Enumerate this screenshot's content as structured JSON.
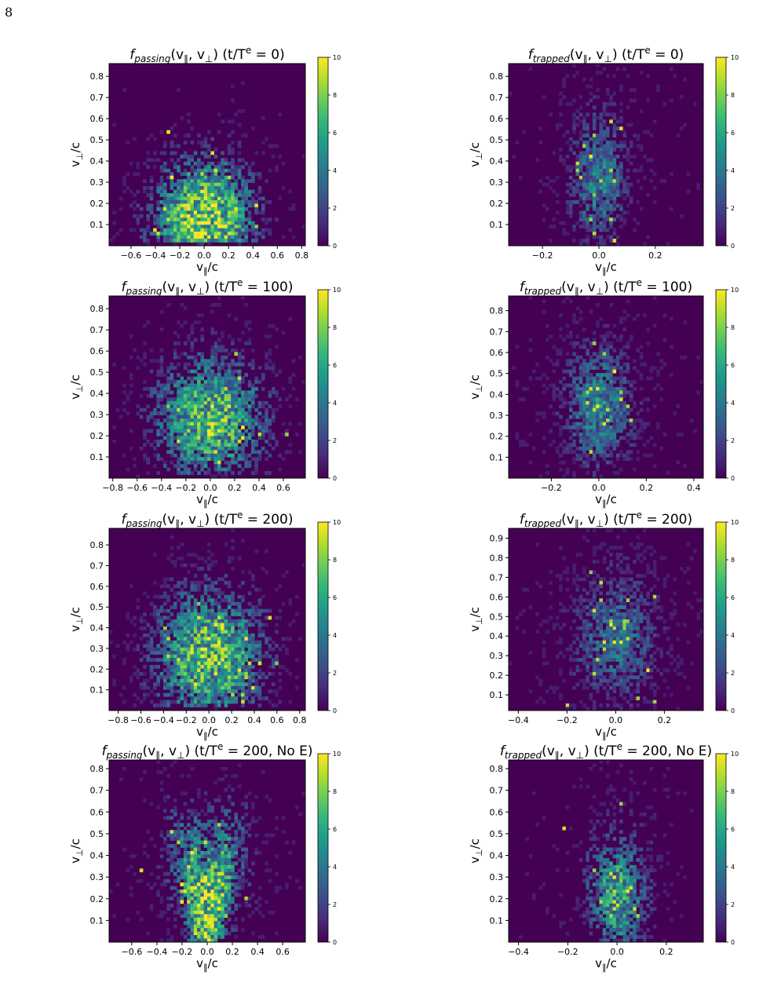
{
  "page_number": "8",
  "colorbar": {
    "min": 0,
    "max": 10,
    "ticks": [
      "0",
      "2",
      "4",
      "6",
      "8",
      "10"
    ]
  },
  "colors": {
    "viridis_low": "#440154",
    "viridis_mid": "#21918c",
    "viridis_high": "#fde725"
  },
  "chart_data": [
    {
      "id": "passing-t0",
      "type": "heatmap",
      "title": "f_passing(v_∥, v_⊥) (t/T^e = 0)",
      "title_parts": {
        "sub": "passing",
        "time": "0"
      },
      "xlabel": "v_∥/c",
      "ylabel": "v_⊥/c",
      "xlim": [
        -0.78,
        0.83
      ],
      "ylim": [
        0.0,
        0.86
      ],
      "xticks": [
        -0.6,
        -0.4,
        -0.2,
        0.0,
        0.2,
        0.4,
        0.6,
        0.8
      ],
      "xticklabels": [
        "−0.6",
        "−0.4",
        "−0.2",
        "0.0",
        "0.2",
        "0.4",
        "0.6",
        "0.8"
      ],
      "yticks": [
        0.1,
        0.2,
        0.3,
        0.4,
        0.5,
        0.6,
        0.7,
        0.8
      ],
      "yticklabels": [
        "0.1",
        "0.2",
        "0.3",
        "0.4",
        "0.5",
        "0.6",
        "0.7",
        "0.8"
      ],
      "distribution": {
        "kind": "passing",
        "seed": 11,
        "density": 1.15,
        "sx": 0.28,
        "sy": 0.2,
        "cy": 0.12,
        "peak": 9.2
      }
    },
    {
      "id": "trapped-t0",
      "type": "heatmap",
      "title": "f_trapped(v_∥, v_⊥) (t/T^e = 0)",
      "title_parts": {
        "sub": "trapped",
        "time": "0"
      },
      "xlabel": "v_∥/c",
      "ylabel": "v_⊥/c",
      "xlim": [
        -0.32,
        0.37
      ],
      "ylim": [
        0.0,
        0.86
      ],
      "xticks": [
        -0.2,
        0.0,
        0.2
      ],
      "xticklabels": [
        "−0.2",
        "0.0",
        "0.2"
      ],
      "yticks": [
        0.1,
        0.2,
        0.3,
        0.4,
        0.5,
        0.6,
        0.7,
        0.8
      ],
      "yticklabels": [
        "0.1",
        "0.2",
        "0.3",
        "0.4",
        "0.5",
        "0.6",
        "0.7",
        "0.8"
      ],
      "distribution": {
        "kind": "trapped",
        "seed": 23,
        "density": 0.7,
        "sx": 0.07,
        "sy": 0.22,
        "cy": 0.3,
        "peak": 6.4
      }
    },
    {
      "id": "passing-t100",
      "type": "heatmap",
      "title": "f_passing(v_∥, v_⊥) (t/T^e = 100)",
      "title_parts": {
        "sub": "passing",
        "time": "100"
      },
      "xlabel": "v_∥/c",
      "ylabel": "v_⊥/c",
      "xlim": [
        -0.83,
        0.78
      ],
      "ylim": [
        0.0,
        0.86
      ],
      "xticks": [
        -0.8,
        -0.6,
        -0.4,
        -0.2,
        0.0,
        0.2,
        0.4,
        0.6
      ],
      "xticklabels": [
        "−0.8",
        "−0.6",
        "−0.4",
        "−0.2",
        "0.0",
        "0.2",
        "0.4",
        "0.6"
      ],
      "yticks": [
        0.1,
        0.2,
        0.3,
        0.4,
        0.5,
        0.6,
        0.7,
        0.8
      ],
      "yticklabels": [
        "0.1",
        "0.2",
        "0.3",
        "0.4",
        "0.5",
        "0.6",
        "0.7",
        "0.8"
      ],
      "distribution": {
        "kind": "passing",
        "seed": 37,
        "density": 1.0,
        "sx": 0.3,
        "sy": 0.2,
        "cy": 0.28,
        "peak": 8.8
      }
    },
    {
      "id": "trapped-t100",
      "type": "heatmap",
      "title": "f_trapped(v_∥, v_⊥) (t/T^e = 100)",
      "title_parts": {
        "sub": "trapped",
        "time": "100"
      },
      "xlabel": "v_∥/c",
      "ylabel": "v_⊥/c",
      "xlim": [
        -0.38,
        0.44
      ],
      "ylim": [
        0.0,
        0.87
      ],
      "xticks": [
        -0.2,
        0.0,
        0.2,
        0.4
      ],
      "xticklabels": [
        "−0.2",
        "0.0",
        "0.2",
        "0.4"
      ],
      "yticks": [
        0.1,
        0.2,
        0.3,
        0.4,
        0.5,
        0.6,
        0.7,
        0.8
      ],
      "yticklabels": [
        "0.1",
        "0.2",
        "0.3",
        "0.4",
        "0.5",
        "0.6",
        "0.7",
        "0.8"
      ],
      "distribution": {
        "kind": "trapped",
        "seed": 41,
        "density": 0.75,
        "sx": 0.1,
        "sy": 0.2,
        "cy": 0.33,
        "peak": 6.5
      }
    },
    {
      "id": "passing-t200",
      "type": "heatmap",
      "title": "f_passing(v_∥, v_⊥) (t/T^e = 200)",
      "title_parts": {
        "sub": "passing",
        "time": "200"
      },
      "xlabel": "v_∥/c",
      "ylabel": "v_⊥/c",
      "xlim": [
        -0.88,
        0.85
      ],
      "ylim": [
        0.0,
        0.88
      ],
      "xticks": [
        -0.8,
        -0.6,
        -0.4,
        -0.2,
        0.0,
        0.2,
        0.4,
        0.6,
        0.8
      ],
      "xticklabels": [
        "−0.8",
        "−0.6",
        "−0.4",
        "−0.2",
        "0.0",
        "0.2",
        "0.4",
        "0.6",
        "0.8"
      ],
      "yticks": [
        0.1,
        0.2,
        0.3,
        0.4,
        0.5,
        0.6,
        0.7,
        0.8
      ],
      "yticklabels": [
        "0.1",
        "0.2",
        "0.3",
        "0.4",
        "0.5",
        "0.6",
        "0.7",
        "0.8"
      ],
      "distribution": {
        "kind": "passing",
        "seed": 53,
        "density": 1.05,
        "sx": 0.32,
        "sy": 0.22,
        "cy": 0.26,
        "peak": 8.6
      }
    },
    {
      "id": "trapped-t200",
      "type": "heatmap",
      "title": "f_trapped(v_∥, v_⊥) (t/T^e = 200)",
      "title_parts": {
        "sub": "trapped",
        "time": "200"
      },
      "xlabel": "v_∥/c",
      "ylabel": "v_⊥/c",
      "xlim": [
        -0.44,
        0.36
      ],
      "ylim": [
        0.02,
        0.95
      ],
      "xticks": [
        -0.4,
        -0.2,
        0.0,
        0.2
      ],
      "xticklabels": [
        "−0.4",
        "−0.2",
        "0.0",
        "0.2"
      ],
      "yticks": [
        0.1,
        0.2,
        0.3,
        0.4,
        0.5,
        0.6,
        0.7,
        0.8,
        0.9
      ],
      "yticklabels": [
        "0.1",
        "0.2",
        "0.3",
        "0.4",
        "0.5",
        "0.6",
        "0.7",
        "0.8",
        "0.9"
      ],
      "distribution": {
        "kind": "trapped",
        "seed": 67,
        "density": 0.65,
        "sx": 0.12,
        "sy": 0.24,
        "cy": 0.38,
        "peak": 6.0
      }
    },
    {
      "id": "passing-t200-noE",
      "type": "heatmap",
      "title": "f_passing(v_∥, v_⊥) (t/T^e = 200, No E)",
      "title_parts": {
        "sub": "passing",
        "time": "200, No E"
      },
      "xlabel": "v_∥/c",
      "ylabel": "v_⊥/c",
      "xlim": [
        -0.78,
        0.78
      ],
      "ylim": [
        0.0,
        0.84
      ],
      "xticks": [
        -0.6,
        -0.4,
        -0.2,
        0.0,
        0.2,
        0.4,
        0.6
      ],
      "xticklabels": [
        "−0.6",
        "−0.4",
        "−0.2",
        "0.0",
        "0.2",
        "0.4",
        "0.6"
      ],
      "yticks": [
        0.1,
        0.2,
        0.3,
        0.4,
        0.5,
        0.6,
        0.7,
        0.8
      ],
      "yticklabels": [
        "0.1",
        "0.2",
        "0.3",
        "0.4",
        "0.5",
        "0.6",
        "0.7",
        "0.8"
      ],
      "distribution": {
        "kind": "vshape",
        "seed": 79,
        "density": 1.1,
        "sx": 0.3,
        "sy": 0.2,
        "cy": 0.2,
        "peak": 9.0
      }
    },
    {
      "id": "trapped-t200-noE",
      "type": "heatmap",
      "title": "f_trapped(v_∥, v_⊥) (t/T^e = 200, No E)",
      "title_parts": {
        "sub": "trapped",
        "time": "200, No E"
      },
      "xlabel": "v_∥/c",
      "ylabel": "v_⊥/c",
      "xlim": [
        -0.44,
        0.35
      ],
      "ylim": [
        0.0,
        0.84
      ],
      "xticks": [
        -0.4,
        -0.2,
        0.0,
        0.2
      ],
      "xticklabels": [
        "−0.4",
        "−0.2",
        "0.0",
        "0.2"
      ],
      "yticks": [
        0.1,
        0.2,
        0.3,
        0.4,
        0.5,
        0.6,
        0.7,
        0.8
      ],
      "yticklabels": [
        "0.1",
        "0.2",
        "0.3",
        "0.4",
        "0.5",
        "0.6",
        "0.7",
        "0.8"
      ],
      "distribution": {
        "kind": "trapped",
        "seed": 97,
        "density": 0.85,
        "sx": 0.08,
        "sy": 0.18,
        "cy": 0.2,
        "peak": 8.0
      }
    }
  ]
}
